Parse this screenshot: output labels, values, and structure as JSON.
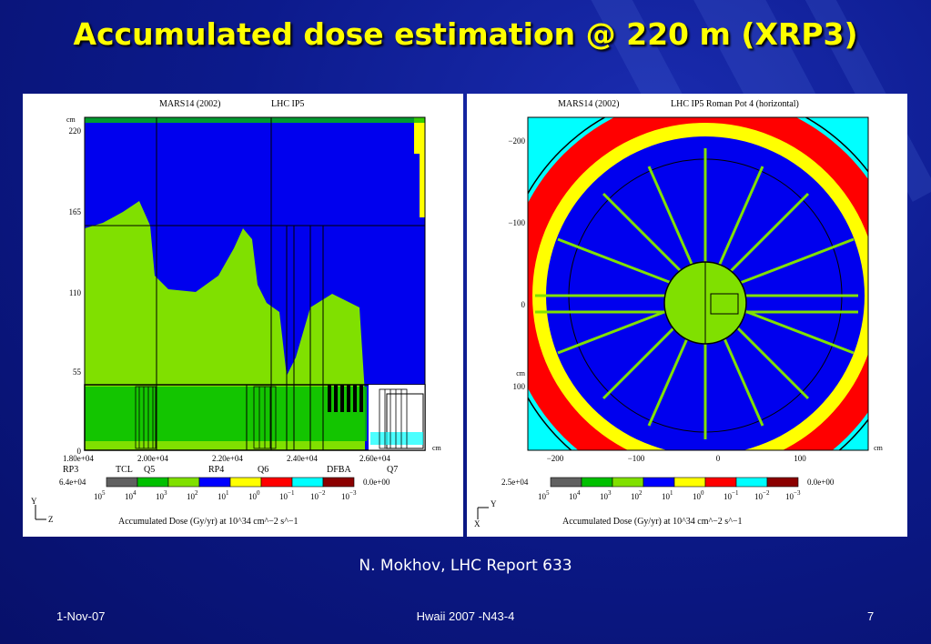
{
  "slide": {
    "title": "Accumulated dose estimation @ 220 m (XRP3)",
    "credit": "N. Mokhov, LHC Report 633",
    "footer_date": "1-Nov-07",
    "footer_center": "Hwaii 2007 -N43-4",
    "page_number": "7"
  },
  "colors": {
    "background": "#0c1a8c",
    "title": "#ffff00",
    "dose_scale": [
      "#606060",
      "#00c000",
      "#80e000",
      "#0000ff",
      "#ffff00",
      "#ff0000",
      "#00ffff",
      "#8b0000"
    ]
  },
  "left_plot": {
    "code": "MARS14 (2002)",
    "facility": "LHC IP5",
    "y_unit": "cm",
    "x_unit": "cm",
    "y_ticks": [
      "220",
      "165",
      "110",
      "55",
      "0"
    ],
    "x_ticks": [
      "1.80e+04",
      "2.00e+04",
      "2.20e+04",
      "2.40e+04",
      "2.60e+04"
    ],
    "elements": [
      "RP3",
      "TCL",
      "Q5",
      "RP4",
      "Q6",
      "DFBA",
      "Q7"
    ],
    "scale_max": "6.4e+04",
    "scale_min": "0.0e+00",
    "scale_labels": [
      "10^5",
      "10^4",
      "10^3",
      "10^2",
      "10^1",
      "10^0",
      "10^-1",
      "10^-2",
      "10^-3"
    ],
    "axis_y": "Y",
    "axis_x": "Z",
    "caption": "Accumulated Dose (Gy/yr) at 10^34 cm^−2 s^−1"
  },
  "right_plot": {
    "code": "MARS14 (2002)",
    "facility": "LHC IP5  Roman Pot 4 (horizontal)",
    "y_ticks": [
      "−200",
      "−100",
      "0",
      "100"
    ],
    "x_ticks": [
      "−200",
      "−100",
      "0",
      "100"
    ],
    "y_unit": "cm",
    "x_unit": "cm",
    "scale_max": "2.5e+04",
    "scale_min": "0.0e+00",
    "scale_labels": [
      "10^5",
      "10^4",
      "10^3",
      "10^2",
      "10^1",
      "10^0",
      "10^-1",
      "10^-2",
      "10^-3"
    ],
    "axis_y": "Y",
    "axis_x": "X",
    "caption": "Accumulated Dose (Gy/yr) at 10^34 cm^−2 s^−1"
  }
}
